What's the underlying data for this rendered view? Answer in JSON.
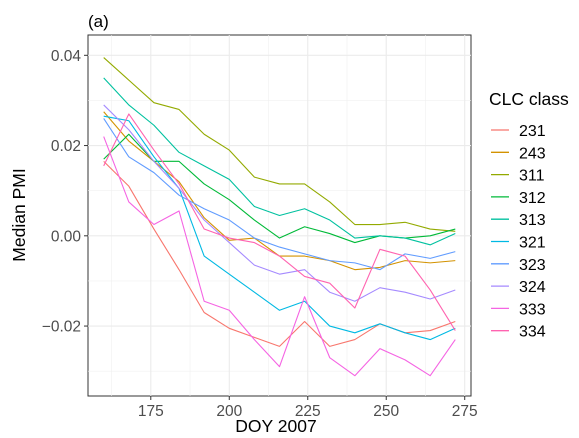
{
  "chart_data": {
    "type": "line",
    "tag": "(a)",
    "xlabel": "DOY 2007",
    "ylabel": "Median PMI",
    "xlim": [
      155,
      277
    ],
    "ylim": [
      -0.0355,
      0.0445
    ],
    "xticks": [
      175,
      200,
      225,
      250,
      275
    ],
    "xtick_labels": [
      "175",
      "200",
      "225",
      "250",
      "275"
    ],
    "yticks": [
      -0.02,
      0.0,
      0.02,
      0.04
    ],
    "ytick_labels": [
      "−0.02",
      "0.00",
      "0.02",
      "0.04"
    ],
    "grid": true,
    "legend_title": "CLC class",
    "legend_position": "right",
    "x": [
      160,
      168,
      176,
      184,
      192,
      200,
      208,
      216,
      224,
      232,
      240,
      248,
      256,
      264,
      272
    ],
    "series": [
      {
        "name": "231",
        "color": "#F8766D",
        "values": [
          0.0165,
          0.011,
          0.0015,
          -0.0075,
          -0.017,
          -0.0205,
          -0.0225,
          -0.0245,
          -0.019,
          -0.0245,
          -0.023,
          -0.0195,
          -0.0215,
          -0.021,
          -0.019
        ]
      },
      {
        "name": "243",
        "color": "#D39200",
        "values": [
          0.0275,
          0.021,
          0.0165,
          0.012,
          0.004,
          -0.001,
          -0.0005,
          -0.0045,
          -0.0045,
          -0.0055,
          -0.0075,
          -0.007,
          -0.0055,
          -0.006,
          -0.0055
        ]
      },
      {
        "name": "311",
        "color": "#93AA00",
        "values": [
          0.0395,
          0.0345,
          0.0295,
          0.028,
          0.0225,
          0.019,
          0.013,
          0.0115,
          0.0115,
          0.0075,
          0.0025,
          0.0025,
          0.003,
          0.0015,
          0.001
        ]
      },
      {
        "name": "312",
        "color": "#00BA38",
        "values": [
          0.017,
          0.0225,
          0.0165,
          0.0165,
          0.0115,
          0.008,
          0.0035,
          -0.0005,
          0.002,
          0.0005,
          -0.0015,
          0.0,
          -0.0005,
          0.0,
          0.0015
        ]
      },
      {
        "name": "313",
        "color": "#00C19F",
        "values": [
          0.035,
          0.029,
          0.0245,
          0.0185,
          0.0155,
          0.0125,
          0.0065,
          0.0045,
          0.006,
          0.0035,
          -0.0005,
          0.0,
          -0.0005,
          -0.002,
          0.0005
        ]
      },
      {
        "name": "321",
        "color": "#00B9E3",
        "values": [
          0.0265,
          0.0255,
          0.0175,
          0.0105,
          -0.0045,
          -0.0085,
          -0.0125,
          -0.0165,
          -0.0145,
          -0.02,
          -0.0215,
          -0.0195,
          -0.0215,
          -0.023,
          -0.0205
        ]
      },
      {
        "name": "323",
        "color": "#619CFF",
        "values": [
          0.026,
          0.0175,
          0.014,
          0.009,
          0.006,
          0.0035,
          -0.0005,
          -0.0025,
          -0.004,
          -0.0055,
          -0.006,
          -0.0075,
          -0.004,
          -0.005,
          -0.0035
        ]
      },
      {
        "name": "324",
        "color": "#A58AFF",
        "values": [
          0.029,
          0.0235,
          0.0165,
          0.0105,
          0.0035,
          -0.0015,
          -0.0065,
          -0.0085,
          -0.0075,
          -0.0125,
          -0.0145,
          -0.0115,
          -0.0125,
          -0.014,
          -0.012
        ]
      },
      {
        "name": "333",
        "color": "#F564E3",
        "values": [
          0.022,
          0.0075,
          0.0025,
          0.0055,
          -0.0145,
          -0.0165,
          -0.023,
          -0.029,
          -0.0135,
          -0.027,
          -0.031,
          -0.025,
          -0.0275,
          -0.031,
          -0.023
        ]
      },
      {
        "name": "334",
        "color": "#FF64B0",
        "values": [
          0.0155,
          0.027,
          0.019,
          0.0115,
          0.0015,
          -0.0005,
          -0.0015,
          -0.0045,
          -0.009,
          -0.0105,
          -0.016,
          -0.003,
          -0.0045,
          -0.012,
          -0.021
        ]
      }
    ]
  }
}
